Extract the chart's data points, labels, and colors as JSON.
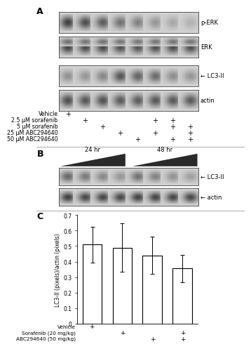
{
  "panel_A": {
    "label": "A",
    "blot_labels": [
      "p-ERK",
      "ERK",
      "LC3-II",
      "actin"
    ],
    "treatment_labels": [
      "Vehicle",
      "2.5 μM sorafenib",
      "5 μM sorafenib",
      "25 μM ABC294640",
      "50 μM ABC294640"
    ],
    "plus_positions": {
      "Vehicle": [
        1,
        0,
        0,
        0,
        0,
        0,
        0,
        0
      ],
      "2.5 μM sorafenib": [
        0,
        1,
        0,
        0,
        0,
        1,
        1,
        0
      ],
      "5 μM sorafenib": [
        0,
        0,
        1,
        0,
        0,
        0,
        1,
        1
      ],
      "25 μM ABC294640": [
        0,
        0,
        0,
        1,
        0,
        1,
        0,
        1
      ],
      "50 μM ABC294640": [
        0,
        0,
        0,
        0,
        1,
        0,
        1,
        1
      ]
    },
    "n_lanes": 8,
    "pERK_pattern": [
      0.88,
      0.82,
      0.75,
      0.65,
      0.58,
      0.48,
      0.4,
      0.35
    ],
    "ERK_pattern": [
      0.85,
      0.82,
      0.84,
      0.8,
      0.78,
      0.8,
      0.82,
      0.8
    ],
    "LC3_pattern": [
      0.5,
      0.48,
      0.55,
      0.78,
      0.72,
      0.68,
      0.52,
      0.48
    ],
    "actin_pattern": [
      0.82,
      0.78,
      0.8,
      0.76,
      0.75,
      0.78,
      0.77,
      0.76
    ]
  },
  "panel_B": {
    "label": "B",
    "time_labels": [
      "24 hr",
      "48 hr"
    ],
    "blot_labels": [
      "LC3-II",
      "actin"
    ],
    "n_lanes": 8,
    "LC3_pattern": [
      0.7,
      0.62,
      0.55,
      0.48,
      0.65,
      0.58,
      0.5,
      0.44
    ],
    "actin_pattern": [
      0.88,
      0.85,
      0.85,
      0.84,
      0.87,
      0.86,
      0.85,
      0.84
    ]
  },
  "panel_C": {
    "label": "C",
    "bar_values": [
      0.51,
      0.49,
      0.44,
      0.355
    ],
    "bar_errors": [
      0.115,
      0.155,
      0.12,
      0.09
    ],
    "bar_color": "#ffffff",
    "bar_edgecolor": "#000000",
    "ylim": [
      0,
      0.7
    ],
    "yticks": [
      0.0,
      0.1,
      0.2,
      0.3,
      0.4,
      0.5,
      0.6,
      0.7
    ],
    "ylabel": "LC3-II (pixels)/actin (pixels)",
    "xlabel_rows": [
      "Vehicle",
      "Sorafenib (20 mg/kg)",
      "ABC294640 (50 mg/kg)"
    ],
    "plus_positions": {
      "Vehicle": [
        1,
        0,
        0,
        0
      ],
      "Sorafenib (20 mg/kg)": [
        0,
        1,
        0,
        1
      ],
      "ABC294640 (50 mg/kg)": [
        0,
        0,
        1,
        1
      ]
    },
    "bar_positions": [
      0,
      1,
      2,
      3
    ]
  },
  "background_color": "#ffffff",
  "text_color": "#000000",
  "fontsize_panel": 9,
  "fontsize_label": 6.0,
  "fontsize_plus": 7.0,
  "fontsize_tick": 5.5
}
